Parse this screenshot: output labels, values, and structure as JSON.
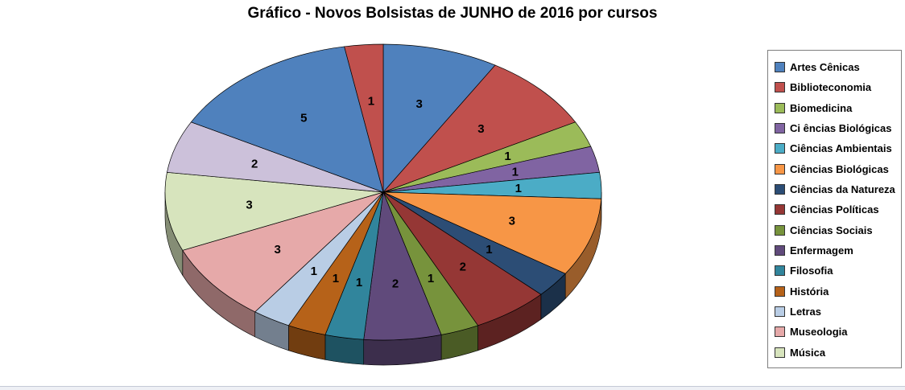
{
  "title": "Gráfico - Novos Bolsistas de JUNHO de 2016 por cursos",
  "chart_data": {
    "type": "pie",
    "title": "Gráfico - Novos Bolsistas de JUNHO de 2016 por cursos",
    "effect": "3d",
    "direction": "clockwise",
    "start_angle_deg": 0,
    "total": 35,
    "legend_position": "right",
    "legend": [
      {
        "label": "Artes Cênicas",
        "color": "#4F81BD"
      },
      {
        "label": "Biblioteconomia",
        "color": "#C0504D"
      },
      {
        "label": "Biomedicina",
        "color": "#9BBB59"
      },
      {
        "label": "Ci ências Biológicas",
        "color": "#8064A2"
      },
      {
        "label": "Ciências Ambientais",
        "color": "#4BACC6"
      },
      {
        "label": "Ciências Biológicas",
        "color": "#F79646"
      },
      {
        "label": "Ciências da Natureza",
        "color": "#2C4D75"
      },
      {
        "label": "Ciências Políticas",
        "color": "#953735"
      },
      {
        "label": "Ciências Sociais",
        "color": "#77933C"
      },
      {
        "label": "Enfermagem",
        "color": "#604A7B"
      },
      {
        "label": "Filosofia",
        "color": "#31859C"
      },
      {
        "label": "História",
        "color": "#B66219"
      },
      {
        "label": "Letras",
        "color": "#B9CDE5"
      },
      {
        "label": "Museologia",
        "color": "#E6A9A9"
      },
      {
        "label": "Música",
        "color": "#D7E4BD"
      }
    ],
    "slices": [
      {
        "label": "Artes Cênicas",
        "value": 3,
        "color": "#4F81BD"
      },
      {
        "label": "Biblioteconomia",
        "value": 3,
        "color": "#C0504D"
      },
      {
        "label": "Biomedicina",
        "value": 1,
        "color": "#9BBB59"
      },
      {
        "label": "Ci ências Biológicas",
        "value": 1,
        "color": "#8064A2"
      },
      {
        "label": "Ciências Ambientais",
        "value": 1,
        "color": "#4BACC6"
      },
      {
        "label": "Ciências Biológicas",
        "value": 3,
        "color": "#F79646"
      },
      {
        "label": "Ciências da Natureza",
        "value": 1,
        "color": "#2C4D75"
      },
      {
        "label": "Ciências Políticas",
        "value": 2,
        "color": "#953735"
      },
      {
        "label": "Ciências Sociais",
        "value": 1,
        "color": "#77933C"
      },
      {
        "label": "Enfermagem",
        "value": 2,
        "color": "#604A7B"
      },
      {
        "label": "Filosofia",
        "value": 1,
        "color": "#31859C"
      },
      {
        "label": "História",
        "value": 1,
        "color": "#B66219"
      },
      {
        "label": "Letras",
        "value": 1,
        "color": "#B9CDE5"
      },
      {
        "label": "Museologia",
        "value": 3,
        "color": "#E6A9A9"
      },
      {
        "label": "Música",
        "value": 3,
        "color": "#D7E4BD"
      },
      {
        "label": "",
        "value": 2,
        "color": "#CCC1DA"
      },
      {
        "label": "",
        "value": 5,
        "color": "#4F81BD"
      },
      {
        "label": "",
        "value": 1,
        "color": "#C0504D"
      }
    ]
  }
}
